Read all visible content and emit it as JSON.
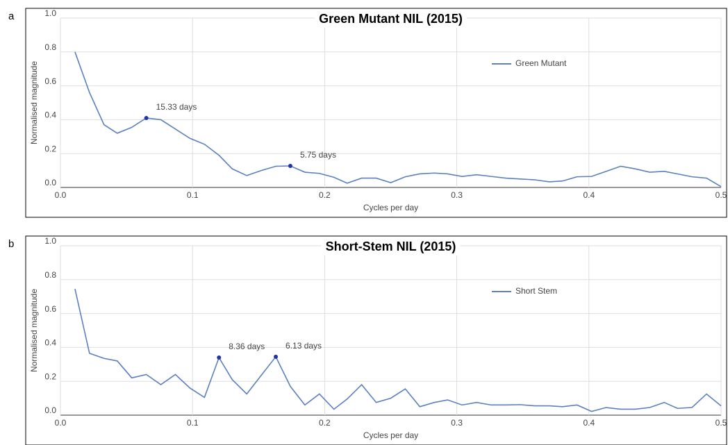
{
  "chart_data": [
    {
      "type": "line",
      "panel": "a",
      "title": "Green Mutant NIL (2015)",
      "x_label": "Cycles per day",
      "y_label": "Normalised magnitude",
      "x": [
        0.011,
        0.022,
        0.033,
        0.043,
        0.054,
        0.065,
        0.076,
        0.087,
        0.098,
        0.109,
        0.12,
        0.13,
        0.141,
        0.152,
        0.163,
        0.174,
        0.185,
        0.196,
        0.207,
        0.217,
        0.228,
        0.239,
        0.25,
        0.261,
        0.272,
        0.283,
        0.293,
        0.304,
        0.315,
        0.326,
        0.337,
        0.348,
        0.359,
        0.37,
        0.38,
        0.391,
        0.402,
        0.413,
        0.424,
        0.435,
        0.446,
        0.457,
        0.467,
        0.478,
        0.489,
        0.5
      ],
      "series": [
        {
          "name": "Green Mutant",
          "color": "#5b7fbf",
          "values": [
            0.8,
            0.56,
            0.37,
            0.32,
            0.355,
            0.41,
            0.4,
            0.345,
            0.29,
            0.255,
            0.19,
            0.11,
            0.07,
            0.1,
            0.125,
            0.127,
            0.09,
            0.083,
            0.06,
            0.025,
            0.055,
            0.055,
            0.028,
            0.063,
            0.08,
            0.085,
            0.08,
            0.065,
            0.075,
            0.065,
            0.055,
            0.05,
            0.045,
            0.033,
            0.038,
            0.063,
            0.065,
            0.095,
            0.125,
            0.11,
            0.09,
            0.095,
            0.08,
            0.063,
            0.055,
            0.005
          ]
        }
      ],
      "annotations": [
        {
          "text": "15.33 days",
          "x": 0.065,
          "y": 0.41
        },
        {
          "text": "5.75 days",
          "x": 0.174,
          "y": 0.127
        }
      ],
      "xlim": [
        0,
        0.5
      ],
      "ylim": [
        0,
        1.0
      ],
      "xticks": [
        {
          "value": 0,
          "label": "0.0"
        },
        0.1,
        0.2,
        0.3,
        0.4,
        0.5
      ],
      "yticks": [
        {
          "value": 0,
          "label": "0.0"
        },
        0.2,
        0.4,
        0.6,
        0.8,
        {
          "value": 1,
          "label": "1.0"
        }
      ],
      "grid": true,
      "legend": "top-right"
    },
    {
      "type": "line",
      "panel": "b",
      "title": "Short-Stem NIL (2015)",
      "x_label": "Cycles per day",
      "y_label": "Normalised magnitude",
      "x": [
        0.011,
        0.022,
        0.033,
        0.043,
        0.054,
        0.065,
        0.076,
        0.087,
        0.098,
        0.109,
        0.12,
        0.13,
        0.141,
        0.152,
        0.163,
        0.174,
        0.185,
        0.196,
        0.207,
        0.217,
        0.228,
        0.239,
        0.25,
        0.261,
        0.272,
        0.283,
        0.293,
        0.304,
        0.315,
        0.326,
        0.337,
        0.348,
        0.359,
        0.37,
        0.38,
        0.391,
        0.402,
        0.413,
        0.424,
        0.435,
        0.446,
        0.457,
        0.467,
        0.478,
        0.489,
        0.5
      ],
      "series": [
        {
          "name": "Short Stem",
          "color": "#5b7fbf",
          "values": [
            0.745,
            0.365,
            0.335,
            0.32,
            0.22,
            0.24,
            0.18,
            0.24,
            0.16,
            0.105,
            0.34,
            0.21,
            0.125,
            0.235,
            0.345,
            0.17,
            0.06,
            0.125,
            0.035,
            0.095,
            0.18,
            0.075,
            0.1,
            0.155,
            0.05,
            0.075,
            0.09,
            0.06,
            0.075,
            0.06,
            0.06,
            0.062,
            0.055,
            0.055,
            0.05,
            0.06,
            0.022,
            0.045,
            0.035,
            0.035,
            0.045,
            0.075,
            0.04,
            0.045,
            0.125,
            0.055
          ]
        }
      ],
      "annotations": [
        {
          "text": "8.36 days",
          "x": 0.12,
          "y": 0.34
        },
        {
          "text": "6.13 days",
          "x": 0.163,
          "y": 0.345
        }
      ],
      "xlim": [
        0,
        0.5
      ],
      "ylim": [
        0,
        1.0
      ],
      "xticks": [
        {
          "value": 0,
          "label": "0.0"
        },
        0.1,
        0.2,
        0.3,
        0.4,
        0.5
      ],
      "yticks": [
        {
          "value": 0,
          "label": "0.0"
        },
        0.2,
        0.4,
        0.6,
        0.8,
        {
          "value": 1,
          "label": "1.0"
        }
      ],
      "grid": true,
      "legend": "top-right"
    }
  ]
}
